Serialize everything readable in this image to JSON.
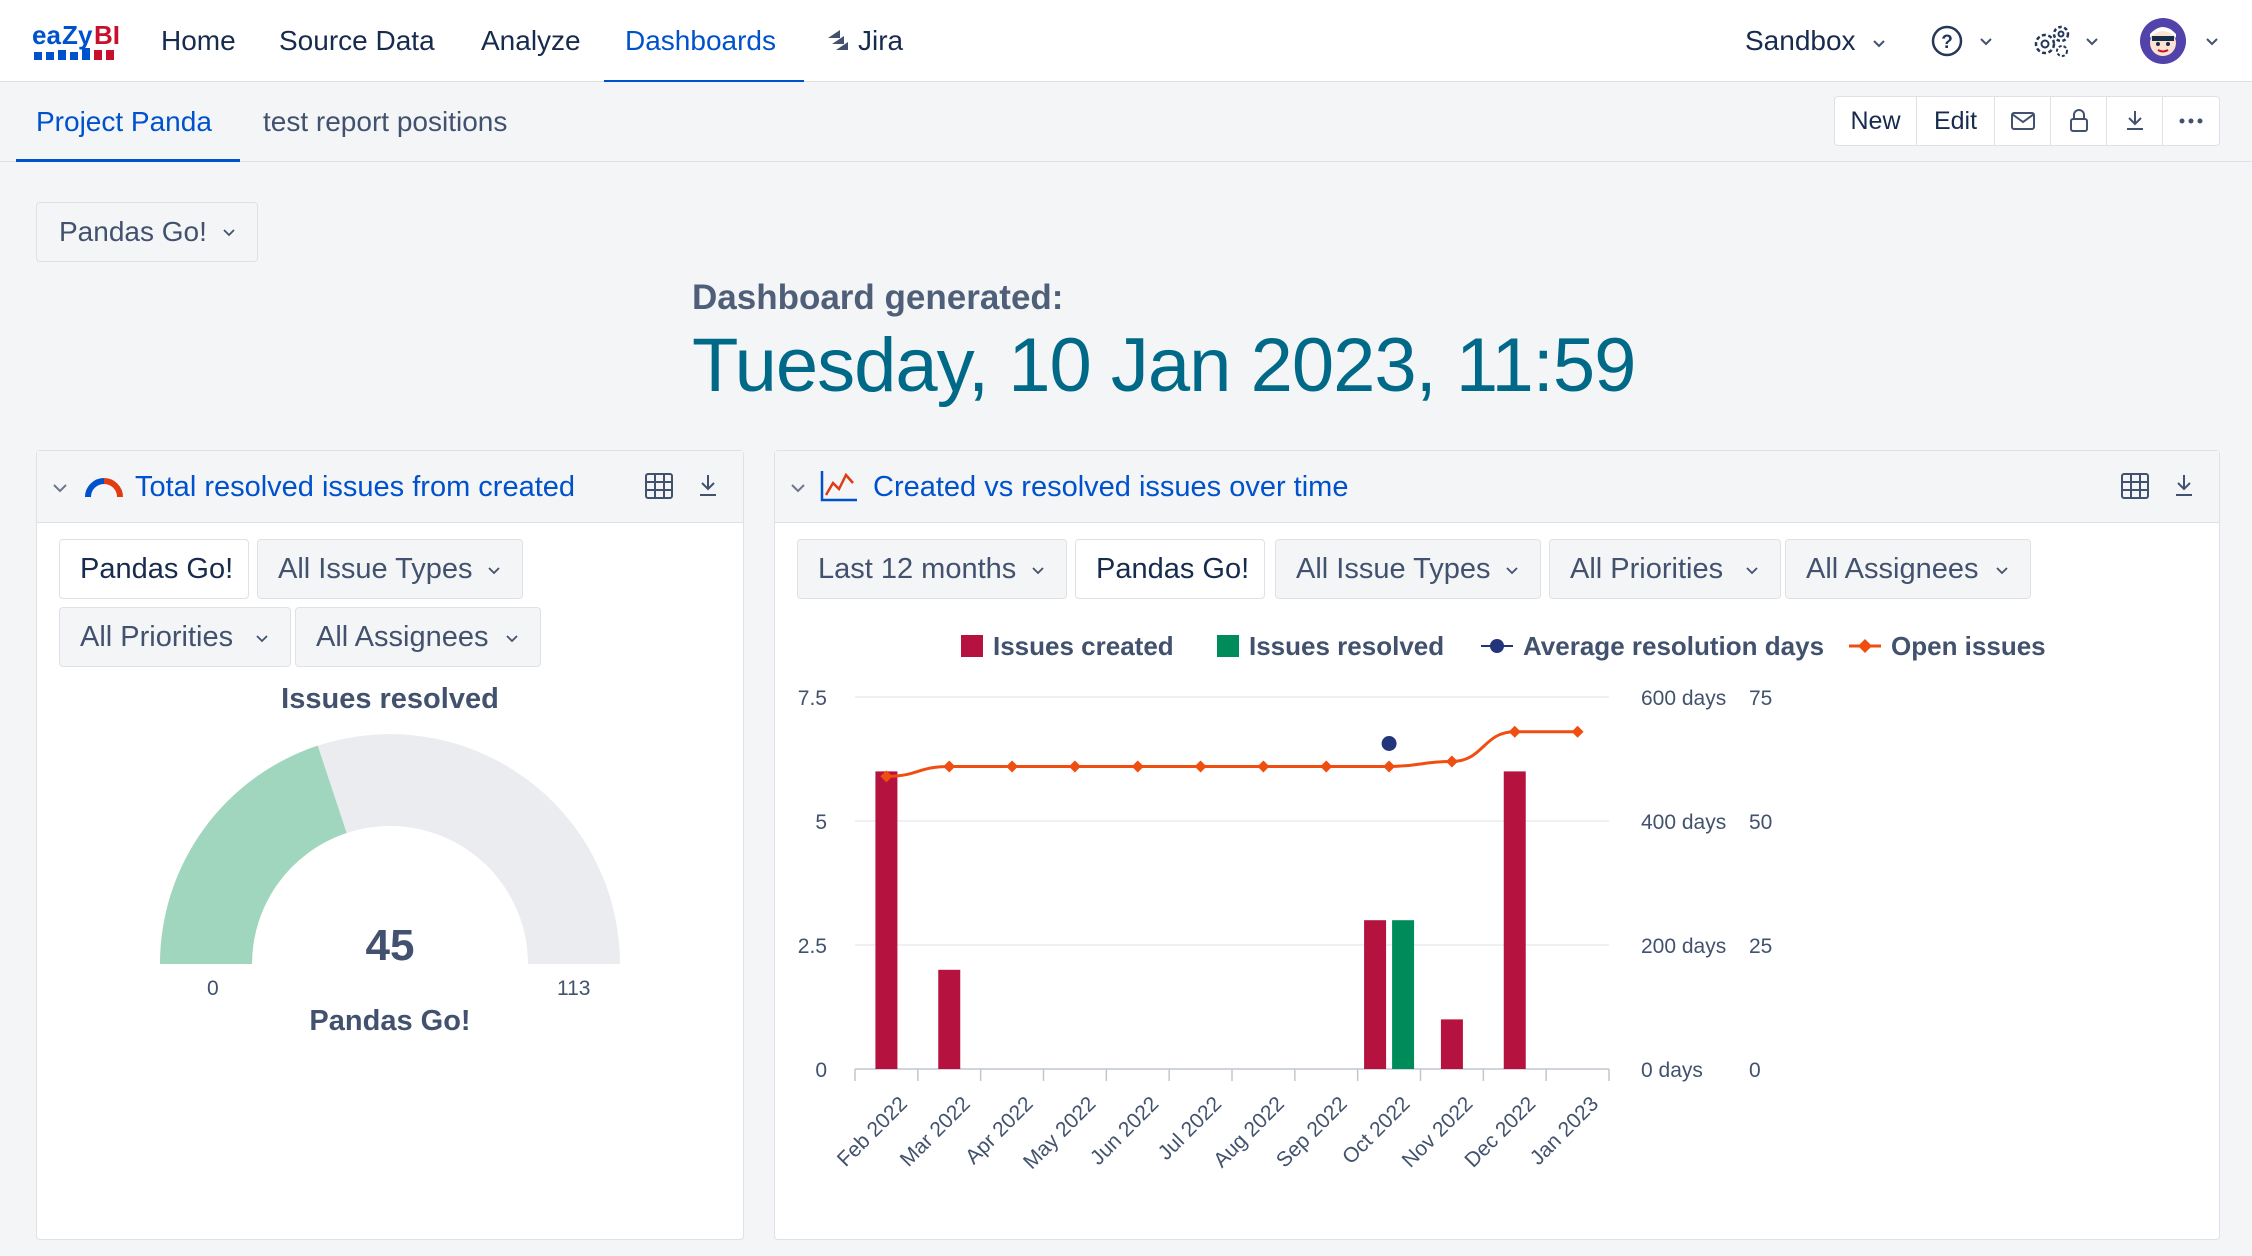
{
  "nav": {
    "logo_text": "eazyBI",
    "items": [
      "Home",
      "Source Data",
      "Analyze",
      "Dashboards"
    ],
    "jira_label": "Jira",
    "account_label": "Sandbox"
  },
  "tabs": {
    "items": [
      "Project Panda",
      "test report positions"
    ],
    "toolbar": {
      "new_label": "New",
      "edit_label": "Edit"
    }
  },
  "page_filter": "Pandas Go!",
  "generated": {
    "label": "Dashboard generated:",
    "value": "Tuesday, 10 Jan 2023, 11:59"
  },
  "gauge_panel": {
    "title": "Total resolved issues from created",
    "filters": [
      "Pandas Go!",
      "All Issue Types",
      "All Priorities",
      "All Assignees"
    ],
    "measure": "Issues resolved",
    "value": "45",
    "value_num": 45,
    "min": "0",
    "max": "113",
    "max_num": 113,
    "member": "Pandas Go!",
    "colors": {
      "fill": "#9fd6bd",
      "track": "#ebecf0"
    }
  },
  "trend_panel": {
    "title": "Created vs resolved issues over time",
    "filters": [
      "Last 12 months",
      "Pandas Go!",
      "All Issue Types",
      "All Priorities",
      "All Assignees"
    ]
  },
  "chart_data": {
    "type": "bar",
    "categories": [
      "Feb 2022",
      "Mar 2022",
      "Apr 2022",
      "May 2022",
      "Jun 2022",
      "Jul 2022",
      "Aug 2022",
      "Sep 2022",
      "Oct 2022",
      "Nov 2022",
      "Dec 2022",
      "Jan 2023"
    ],
    "series": [
      {
        "name": "Issues created",
        "type": "bar",
        "axis": "left",
        "color": "#b5123f",
        "values": [
          6,
          2,
          0,
          0,
          0,
          0,
          0,
          0,
          3,
          1,
          6,
          0
        ]
      },
      {
        "name": "Issues resolved",
        "type": "bar",
        "axis": "left",
        "color": "#008c5a",
        "values": [
          0,
          0,
          0,
          0,
          0,
          0,
          0,
          0,
          3,
          0,
          0,
          0
        ]
      },
      {
        "name": "Average resolution days",
        "type": "scatter",
        "axis": "right-days",
        "color": "#22347a",
        "values": [
          null,
          null,
          null,
          null,
          null,
          null,
          null,
          null,
          525,
          null,
          null,
          null
        ]
      },
      {
        "name": "Open issues",
        "type": "line",
        "axis": "right-count",
        "color": "#f04e11",
        "values": [
          59,
          61,
          61,
          61,
          61,
          61,
          61,
          61,
          61,
          62,
          68,
          68
        ]
      }
    ],
    "left_axis": {
      "ticks": [
        "0",
        "2.5",
        "5",
        "7.5"
      ],
      "ylim": [
        0,
        7.5
      ]
    },
    "right_axis_days": {
      "ticks": [
        "0 days",
        "200 days",
        "400 days",
        "600 days"
      ],
      "ylim": [
        0,
        600
      ]
    },
    "right_axis_count": {
      "ticks": [
        "0",
        "25",
        "50",
        "75"
      ],
      "ylim": [
        0,
        75
      ]
    },
    "legend_position": "top",
    "grid": true
  }
}
